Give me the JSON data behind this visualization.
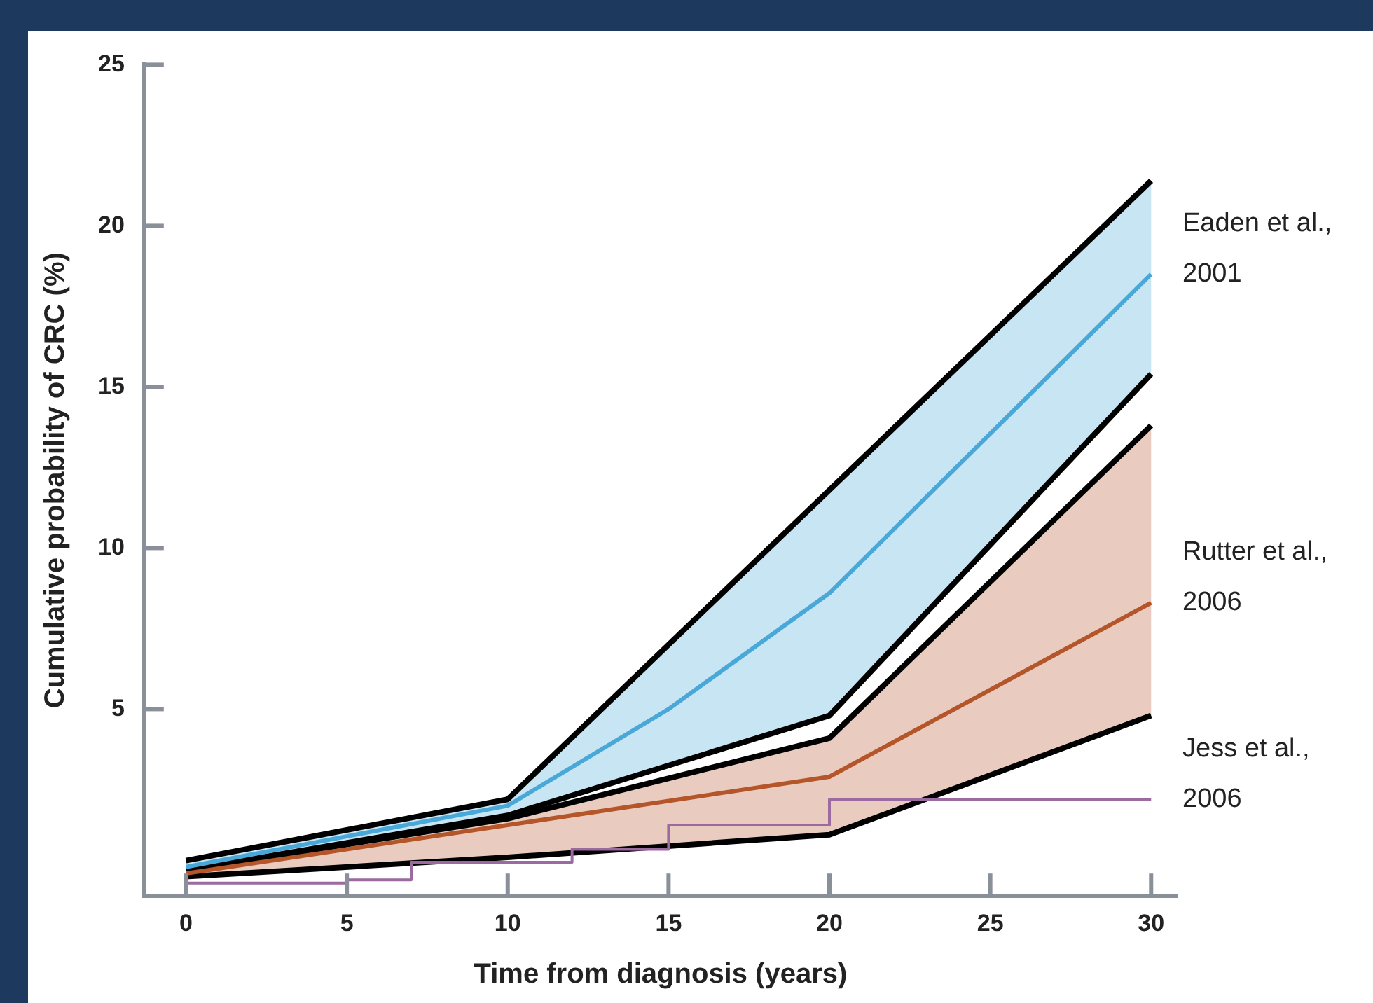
{
  "chart_data": {
    "type": "line",
    "xlabel": "Time from diagnosis (years)",
    "ylabel": "Cumulative probability of CRC (%)",
    "xlim": [
      -1.3,
      30.8
    ],
    "xticks": [
      0,
      5,
      10,
      15,
      20,
      25,
      30
    ],
    "ylim": [
      -0.8,
      25
    ],
    "yticks": [
      5,
      10,
      15,
      20,
      25
    ],
    "grid": false,
    "legend": false,
    "marker": "none",
    "line_style": "solid",
    "series": [
      {
        "name": "Eaden et al., 2001",
        "color": "#4aa8d8",
        "x": [
          0,
          10,
          15,
          20,
          30
        ],
        "values": [
          0.1,
          2.0,
          5.0,
          8.6,
          18.5
        ],
        "upper": [
          0.3,
          2.2,
          7.0,
          11.8,
          21.4
        ],
        "lower": [
          0.0,
          1.7,
          3.25,
          4.8,
          15.4
        ]
      },
      {
        "color": "#000000",
        "x": [
          0,
          10,
          20,
          30
        ],
        "values": [
          0.3,
          2.2,
          11.8,
          21.4
        ]
      },
      {
        "color": "#000000",
        "x": [
          0,
          10,
          20,
          30
        ],
        "values": [
          0.0,
          1.7,
          4.8,
          15.4
        ]
      },
      {
        "name": "Rutter et al., 2006",
        "color": "#b5552a",
        "x": [
          0,
          10,
          20,
          30
        ],
        "values": [
          -0.1,
          1.4,
          2.9,
          8.3
        ],
        "upper": [
          0.0,
          1.6,
          4.1,
          13.8
        ],
        "lower": [
          -0.2,
          0.4,
          1.1,
          4.8
        ]
      },
      {
        "color": "#000000",
        "x": [
          0,
          10,
          20,
          30
        ],
        "values": [
          0.0,
          1.6,
          4.1,
          13.8
        ]
      },
      {
        "color": "#000000",
        "x": [
          0,
          10,
          20,
          30
        ],
        "values": [
          -0.2,
          0.4,
          1.1,
          4.8
        ]
      },
      {
        "name": "Jess et al., 2006",
        "type": "step",
        "color": "#9a6aa0",
        "x": [
          0,
          5,
          7,
          12,
          15,
          20,
          30
        ],
        "values": [
          -0.4,
          -0.3,
          0.25,
          0.65,
          1.4,
          2.2,
          2.2
        ]
      }
    ]
  }
}
